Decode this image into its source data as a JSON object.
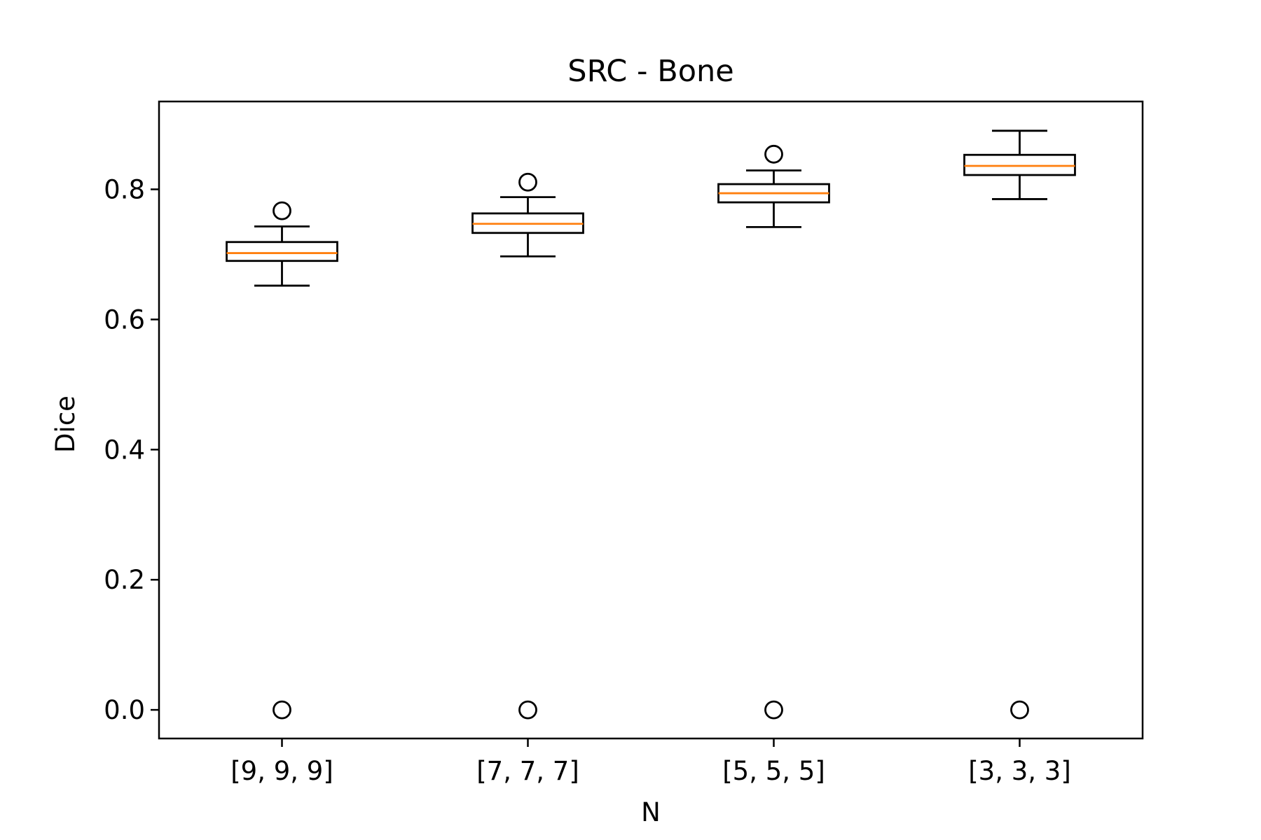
{
  "chart_data": {
    "type": "box",
    "title": "SRC - Bone",
    "xlabel": "N",
    "ylabel": "Dice",
    "categories": [
      "[9, 9, 9]",
      "[7, 7, 7]",
      "[5, 5, 5]",
      "[3, 3, 3]"
    ],
    "ylim": [
      -0.044,
      0.935
    ],
    "yticks": [
      0.0,
      0.2,
      0.4,
      0.6,
      0.8
    ],
    "ytick_labels": [
      "0.0",
      "0.2",
      "0.4",
      "0.6",
      "0.8"
    ],
    "grid": false,
    "boxes": [
      {
        "whisker_low": 0.652,
        "q1": 0.69,
        "median": 0.702,
        "q3": 0.719,
        "whisker_high": 0.743,
        "outliers": [
          0.767,
          0.0
        ]
      },
      {
        "whisker_low": 0.697,
        "q1": 0.733,
        "median": 0.747,
        "q3": 0.763,
        "whisker_high": 0.788,
        "outliers": [
          0.811,
          0.0
        ]
      },
      {
        "whisker_low": 0.742,
        "q1": 0.78,
        "median": 0.794,
        "q3": 0.808,
        "whisker_high": 0.829,
        "outliers": [
          0.854,
          0.0
        ]
      },
      {
        "whisker_low": 0.785,
        "q1": 0.822,
        "median": 0.836,
        "q3": 0.853,
        "whisker_high": 0.89,
        "outliers": [
          0.0
        ]
      }
    ],
    "colors": {
      "box": "#000000",
      "median": "#ff7f0e",
      "outlier": "#000000"
    }
  }
}
